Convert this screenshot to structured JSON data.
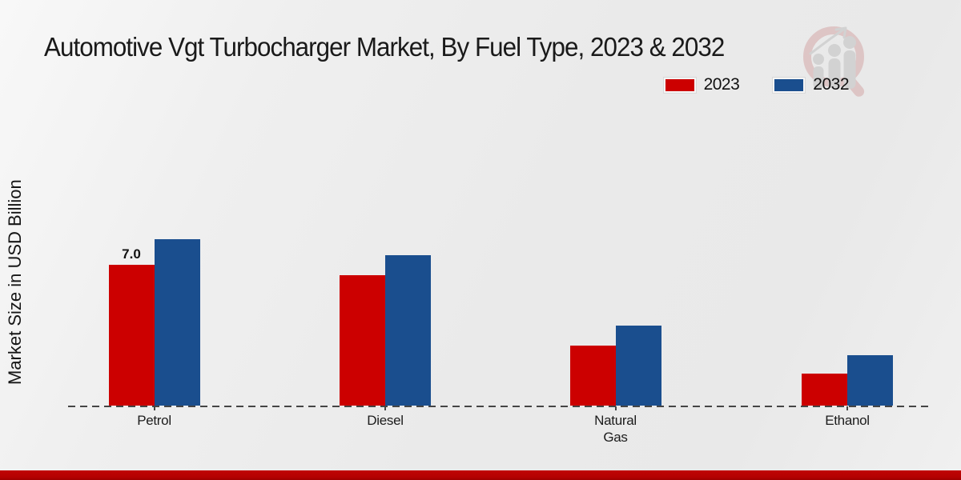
{
  "header": {
    "title": "Automotive Vgt Turbocharger Market, By Fuel Type, 2023 & 2032"
  },
  "watermark": {
    "icon": "market-research-magnifier-logo",
    "ring_color": "#dcbfbf",
    "bars_color": "#cecece"
  },
  "chart_data": {
    "type": "bar",
    "title": "Automotive Vgt Turbocharger Market, By Fuel Type, 2023 & 2032",
    "xlabel": "",
    "ylabel": "Market Size in USD Billion",
    "categories": [
      "Petrol",
      "Diesel",
      "Natural Gas",
      "Ethanol"
    ],
    "series": [
      {
        "name": "2023",
        "color": "#cc0000",
        "values": [
          7.0,
          6.5,
          3.0,
          1.6
        ]
      },
      {
        "name": "2032",
        "color": "#1a4e8e",
        "values": [
          8.3,
          7.5,
          4.0,
          2.5
        ]
      }
    ],
    "annotations": [
      {
        "category": "Petrol",
        "series": "2023",
        "text": "7.0"
      }
    ],
    "ylim": [
      0,
      10
    ],
    "grid": false,
    "legend_position": "top-right",
    "baseline_style": "dashed",
    "value_axis_ticks_visible": false
  },
  "footer": {
    "bar_color": "#b40101"
  }
}
